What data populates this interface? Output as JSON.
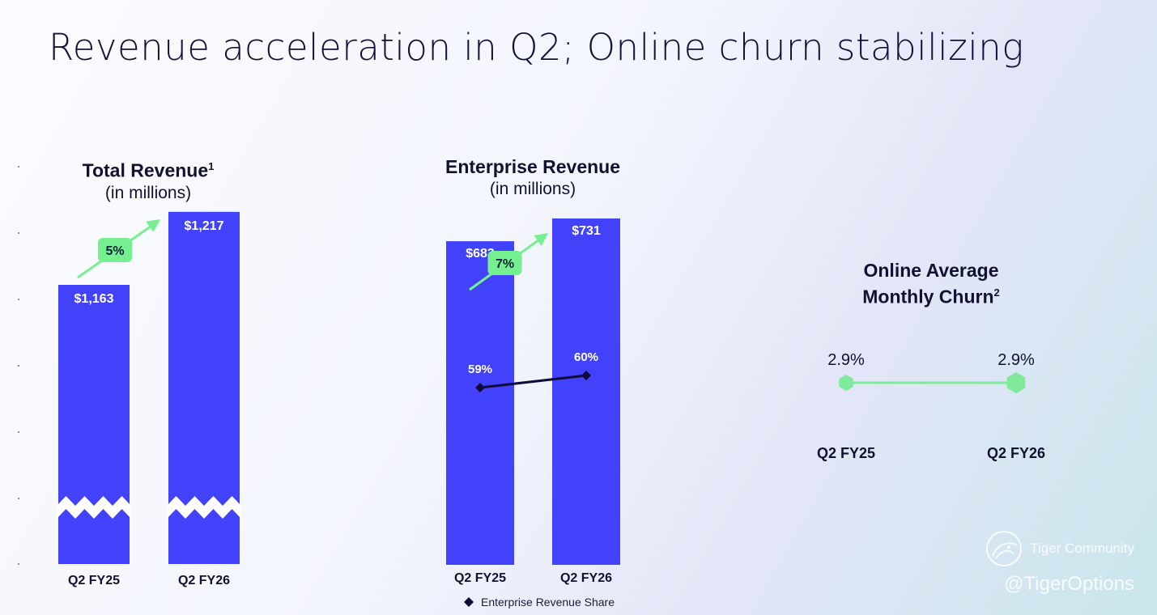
{
  "slide_title": "Revenue acceleration in Q2; Online churn stabilizing",
  "colors": {
    "bar": "#4242fa",
    "growth": "#74f08f",
    "share_line": "#0f0c3a",
    "churn_line": "#7eea9a"
  },
  "charts": {
    "total": {
      "title": "Total Revenue",
      "footnote": "1",
      "subtitle": "(in millions)",
      "growth_label": "5%"
    },
    "enterprise": {
      "title": "Enterprise Revenue",
      "subtitle": "(in millions)",
      "growth_label": "7%",
      "legend": "Enterprise Revenue Share"
    },
    "churn": {
      "title_line1": "Online Average",
      "title_line2": "Monthly Churn",
      "footnote": "2"
    }
  },
  "chart_data": [
    {
      "type": "bar",
      "title": "Total Revenue",
      "subtitle": "(in millions)",
      "categories": [
        "Q2 FY25",
        "Q2 FY26"
      ],
      "values": [
        1163,
        1217
      ],
      "value_labels": [
        "$1,163",
        "$1,217"
      ],
      "axis_break": true,
      "growth": "5%"
    },
    {
      "type": "bar",
      "title": "Enterprise Revenue",
      "subtitle": "(in millions)",
      "categories": [
        "Q2 FY25",
        "Q2 FY26"
      ],
      "values": [
        683,
        731
      ],
      "value_labels": [
        "$683",
        "$731"
      ],
      "growth": "7%",
      "line_series": {
        "name": "Enterprise Revenue Share",
        "values": [
          59,
          60
        ],
        "labels": [
          "59%",
          "60%"
        ]
      }
    },
    {
      "type": "line",
      "title": "Online Average Monthly Churn",
      "categories": [
        "Q2 FY25",
        "Q2 FY26"
      ],
      "values": [
        2.9,
        2.9
      ],
      "value_labels": [
        "2.9%",
        "2.9%"
      ]
    }
  ],
  "watermark": {
    "brand": "Tiger Community",
    "handle": "@TigerOptions"
  }
}
